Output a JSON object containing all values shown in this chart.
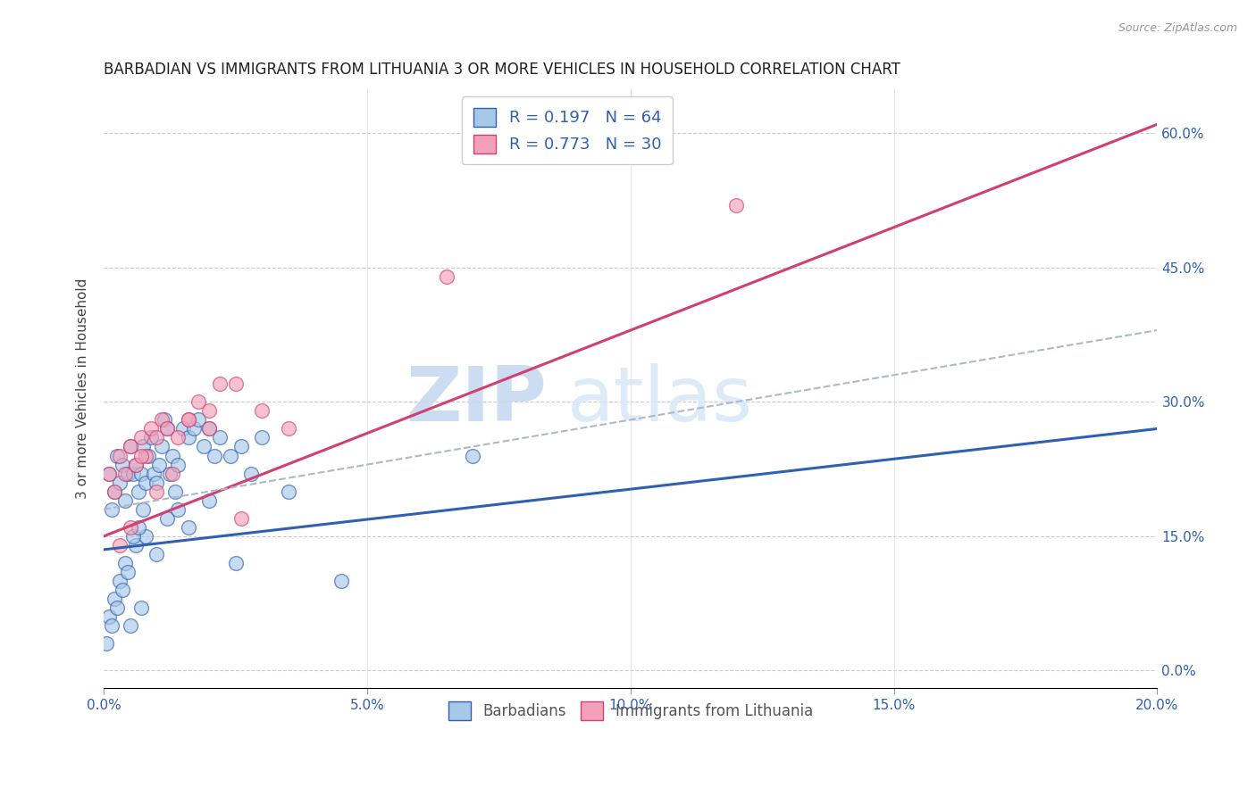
{
  "title": "BARBADIAN VS IMMIGRANTS FROM LITHUANIA 3 OR MORE VEHICLES IN HOUSEHOLD CORRELATION CHART",
  "source": "Source: ZipAtlas.com",
  "xlabel_ticks": [
    "0.0%",
    "5.0%",
    "10.0%",
    "15.0%",
    "20.0%"
  ],
  "xlabel_vals": [
    0.0,
    5.0,
    10.0,
    15.0,
    20.0
  ],
  "ylabel": "3 or more Vehicles in Household",
  "ylabel_ticks": [
    "0.0%",
    "15.0%",
    "30.0%",
    "45.0%",
    "60.0%"
  ],
  "ylabel_vals": [
    0.0,
    15.0,
    30.0,
    45.0,
    60.0
  ],
  "xlim": [
    0.0,
    20.0
  ],
  "ylim": [
    -2.0,
    65.0
  ],
  "legend_label1": "Barbadians",
  "legend_label2": "Immigrants from Lithuania",
  "R1": "0.197",
  "N1": "64",
  "R2": "0.773",
  "N2": "30",
  "color_blue": "#a8c8e8",
  "color_pink": "#f4a0b8",
  "color_line_blue": "#3060b0",
  "color_line_pink": "#d04070",
  "color_dashed": "#b0b8c8",
  "watermark_zip": "ZIP",
  "watermark_atlas": "atlas",
  "scatter_blue_x": [
    0.1,
    0.15,
    0.2,
    0.25,
    0.3,
    0.35,
    0.4,
    0.45,
    0.5,
    0.55,
    0.6,
    0.65,
    0.7,
    0.75,
    0.8,
    0.85,
    0.9,
    0.95,
    1.0,
    1.05,
    1.1,
    1.15,
    1.2,
    1.25,
    1.3,
    1.35,
    1.4,
    1.5,
    1.6,
    1.7,
    1.8,
    1.9,
    2.0,
    2.1,
    2.2,
    2.4,
    2.6,
    2.8,
    3.0,
    3.5,
    0.1,
    0.2,
    0.3,
    0.4,
    0.5,
    0.6,
    0.7,
    0.8,
    1.0,
    1.2,
    1.4,
    1.6,
    2.0,
    2.5,
    4.5,
    7.0,
    0.05,
    0.15,
    0.25,
    0.35,
    0.45,
    0.55,
    0.65,
    0.75
  ],
  "scatter_blue_y": [
    22,
    18,
    20,
    24,
    21,
    23,
    19,
    22,
    25,
    22,
    23,
    20,
    22,
    25,
    21,
    24,
    26,
    22,
    21,
    23,
    25,
    28,
    27,
    22,
    24,
    20,
    23,
    27,
    26,
    27,
    28,
    25,
    27,
    24,
    26,
    24,
    25,
    22,
    26,
    20,
    6,
    8,
    10,
    12,
    5,
    14,
    7,
    15,
    13,
    17,
    18,
    16,
    19,
    12,
    10,
    24,
    3,
    5,
    7,
    9,
    11,
    15,
    16,
    18
  ],
  "scatter_pink_x": [
    0.1,
    0.2,
    0.3,
    0.4,
    0.5,
    0.6,
    0.7,
    0.8,
    0.9,
    1.0,
    1.1,
    1.2,
    1.4,
    1.6,
    1.8,
    2.0,
    2.2,
    2.5,
    3.0,
    3.5,
    0.3,
    0.5,
    0.7,
    1.0,
    1.3,
    1.6,
    2.0,
    2.6,
    6.5,
    12.0
  ],
  "scatter_pink_y": [
    22,
    20,
    24,
    22,
    25,
    23,
    26,
    24,
    27,
    26,
    28,
    27,
    26,
    28,
    30,
    29,
    32,
    32,
    29,
    27,
    14,
    16,
    24,
    20,
    22,
    28,
    27,
    17,
    44,
    52
  ],
  "blue_line_x0": 0.0,
  "blue_line_y0": 13.5,
  "blue_line_x1": 20.0,
  "blue_line_y1": 27.0,
  "pink_line_x0": 0.0,
  "pink_line_y0": 15.0,
  "pink_line_x1": 20.0,
  "pink_line_y1": 61.0,
  "dash_line_x0": 0.0,
  "dash_line_y0": 18.0,
  "dash_line_x1": 20.0,
  "dash_line_y1": 38.0
}
